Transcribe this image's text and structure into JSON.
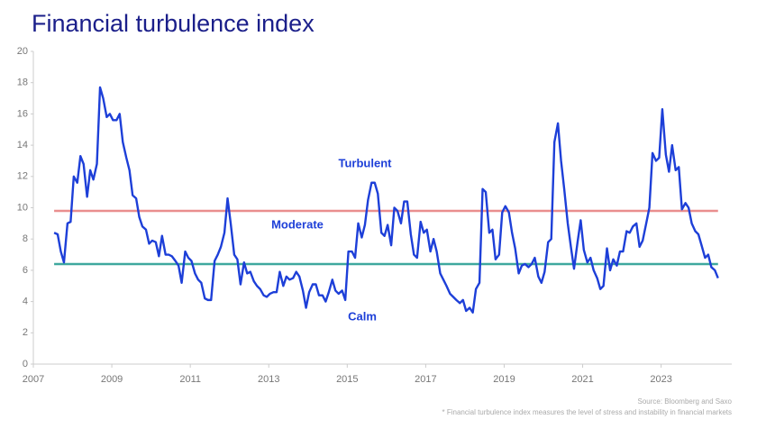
{
  "chart_data": {
    "type": "line",
    "title": "Financial turbulence index",
    "x": [
      2007.53,
      2007.62,
      2007.7,
      2007.78,
      2007.87,
      2007.95,
      2008.03,
      2008.12,
      2008.2,
      2008.28,
      2008.37,
      2008.45,
      2008.53,
      2008.62,
      2008.7,
      2008.78,
      2008.87,
      2008.95,
      2009.03,
      2009.12,
      2009.2,
      2009.28,
      2009.37,
      2009.45,
      2009.53,
      2009.62,
      2009.7,
      2009.78,
      2009.87,
      2009.95,
      2010.03,
      2010.12,
      2010.2,
      2010.28,
      2010.37,
      2010.45,
      2010.53,
      2010.62,
      2010.7,
      2010.78,
      2010.87,
      2010.95,
      2011.03,
      2011.12,
      2011.2,
      2011.28,
      2011.37,
      2011.45,
      2011.53,
      2011.62,
      2011.7,
      2011.78,
      2011.87,
      2011.95,
      2012.03,
      2012.12,
      2012.2,
      2012.28,
      2012.37,
      2012.45,
      2012.53,
      2012.62,
      2012.7,
      2012.78,
      2012.87,
      2012.95,
      2013.03,
      2013.12,
      2013.2,
      2013.28,
      2013.37,
      2013.45,
      2013.53,
      2013.62,
      2013.7,
      2013.78,
      2013.87,
      2013.95,
      2014.03,
      2014.12,
      2014.2,
      2014.28,
      2014.37,
      2014.45,
      2014.53,
      2014.62,
      2014.7,
      2014.78,
      2014.87,
      2014.95,
      2015.03,
      2015.12,
      2015.2,
      2015.28,
      2015.37,
      2015.45,
      2015.53,
      2015.62,
      2015.7,
      2015.78,
      2015.87,
      2015.95,
      2016.03,
      2016.12,
      2016.2,
      2016.28,
      2016.37,
      2016.45,
      2016.53,
      2016.62,
      2016.7,
      2016.78,
      2016.87,
      2016.95,
      2017.03,
      2017.12,
      2017.2,
      2017.28,
      2017.37,
      2017.45,
      2017.53,
      2017.62,
      2017.7,
      2017.78,
      2017.87,
      2017.95,
      2018.03,
      2018.12,
      2018.2,
      2018.28,
      2018.37,
      2018.45,
      2018.53,
      2018.62,
      2018.7,
      2018.78,
      2018.87,
      2018.95,
      2019.03,
      2019.12,
      2019.2,
      2019.28,
      2019.37,
      2019.45,
      2019.53,
      2019.62,
      2019.7,
      2019.78,
      2019.87,
      2019.95,
      2020.03,
      2020.12,
      2020.2,
      2020.28,
      2020.37,
      2020.45,
      2020.53,
      2020.62,
      2020.7,
      2020.78,
      2020.87,
      2020.95,
      2021.03,
      2021.12,
      2021.2,
      2021.28,
      2021.37,
      2021.45,
      2021.53,
      2021.62,
      2021.7,
      2021.78,
      2021.87,
      2021.95,
      2022.03,
      2022.12,
      2022.2,
      2022.28,
      2022.37,
      2022.45,
      2022.53,
      2022.62,
      2022.7,
      2022.78,
      2022.87,
      2022.95,
      2023.03,
      2023.12,
      2023.2,
      2023.28,
      2023.37,
      2023.45,
      2023.53,
      2023.62,
      2023.7,
      2023.78,
      2023.87,
      2023.95,
      2024.03,
      2024.12,
      2024.2,
      2024.28,
      2024.37,
      2024.45
    ],
    "series": [
      {
        "name": "Financial turbulence index",
        "color": "#1d3fd8",
        "values": [
          8.4,
          8.3,
          7.2,
          6.5,
          9.0,
          9.1,
          12.0,
          11.6,
          13.3,
          12.8,
          10.7,
          12.4,
          11.8,
          12.8,
          17.7,
          17.0,
          15.8,
          16.0,
          15.6,
          15.6,
          16.0,
          14.2,
          13.2,
          12.4,
          10.8,
          10.6,
          9.4,
          8.8,
          8.6,
          7.7,
          7.9,
          7.8,
          6.9,
          8.2,
          7.0,
          7.0,
          6.9,
          6.6,
          6.3,
          5.2,
          7.2,
          6.8,
          6.6,
          5.8,
          5.4,
          5.2,
          4.2,
          4.1,
          4.1,
          6.6,
          7.0,
          7.5,
          8.4,
          10.6,
          9.0,
          7.0,
          6.7,
          5.1,
          6.5,
          5.8,
          5.9,
          5.3,
          5.0,
          4.8,
          4.4,
          4.3,
          4.5,
          4.6,
          4.6,
          5.9,
          5.0,
          5.6,
          5.4,
          5.5,
          5.9,
          5.6,
          4.7,
          3.6,
          4.6,
          5.1,
          5.1,
          4.4,
          4.4,
          4.0,
          4.6,
          5.4,
          4.7,
          4.5,
          4.7,
          4.1,
          7.2,
          7.2,
          6.8,
          9.0,
          8.1,
          8.9,
          10.5,
          11.6,
          11.6,
          10.9,
          8.4,
          8.2,
          8.9,
          7.6,
          10.0,
          9.8,
          9.0,
          10.4,
          10.4,
          8.3,
          7.0,
          6.8,
          9.1,
          8.4,
          8.6,
          7.2,
          8.0,
          7.2,
          5.8,
          5.4,
          5.0,
          4.5,
          4.3,
          4.1,
          3.9,
          4.1,
          3.4,
          3.6,
          3.3,
          4.8,
          5.2,
          11.2,
          11.0,
          8.4,
          8.6,
          6.7,
          7.0,
          9.7,
          10.1,
          9.7,
          8.4,
          7.4,
          5.8,
          6.3,
          6.4,
          6.2,
          6.4,
          6.8,
          5.6,
          5.2,
          5.9,
          7.8,
          8.0,
          14.2,
          15.4,
          13.0,
          11.2,
          9.0,
          7.5,
          6.1,
          7.8,
          9.2,
          7.3,
          6.5,
          6.8,
          6.0,
          5.5,
          4.8,
          5.0,
          7.4,
          6.0,
          6.7,
          6.3,
          7.2,
          7.2,
          8.5,
          8.4,
          8.8,
          9.0,
          7.5,
          7.9,
          9.0,
          10.0,
          13.5,
          13.0,
          13.2,
          16.3,
          13.4,
          12.3,
          14.0,
          12.4,
          12.6,
          9.9,
          10.3,
          10.0,
          9.0,
          8.5,
          8.3,
          7.6,
          6.8,
          7.0,
          6.2,
          6.0,
          5.5
        ]
      }
    ],
    "reference_lines": [
      {
        "value": 9.8,
        "color": "#e98e8e"
      },
      {
        "value": 6.4,
        "color": "#3ea89e"
      }
    ],
    "annotations": [
      "Turbulent",
      "Moderate",
      "Calm"
    ],
    "xlim": [
      2007,
      2024.8
    ],
    "xticks": [
      2007,
      2009,
      2011,
      2013,
      2015,
      2017,
      2019,
      2021,
      2023
    ],
    "ylim": [
      0,
      20
    ],
    "yticks": [
      0,
      2,
      4,
      6,
      8,
      10,
      12,
      14,
      16,
      18,
      20
    ],
    "source": "Source: Bloomberg and Saxo",
    "footnote": "* Financial turbulence index measures the level of stress and instability in financial markets"
  }
}
